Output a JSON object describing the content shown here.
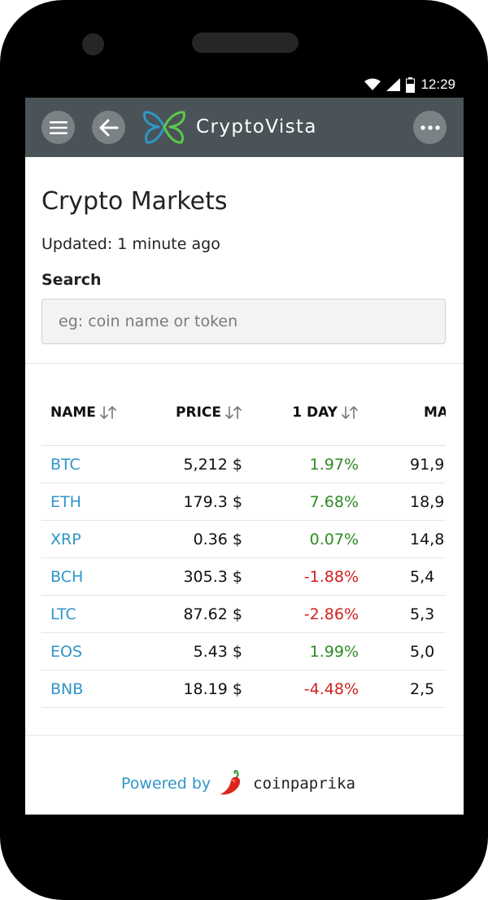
{
  "status_bar": {
    "time": "12:29"
  },
  "topbar": {
    "brand": "CryptoVista"
  },
  "page": {
    "title": "Crypto Markets",
    "updated": "Updated: 1 minute ago",
    "search_label": "Search",
    "search_placeholder": "eg: coin name or token",
    "search_value": ""
  },
  "table": {
    "headers": {
      "name": "NAME",
      "price": "PRICE",
      "day": "1 DAY",
      "market": "MA"
    },
    "rows": [
      {
        "symbol": "BTC",
        "price": "5,212 $",
        "change": "1.97%",
        "trend": "positive",
        "mcap": "91,9"
      },
      {
        "symbol": "ETH",
        "price": "179.3 $",
        "change": "7.68%",
        "trend": "positive",
        "mcap": "18,9"
      },
      {
        "symbol": "XRP",
        "price": "0.36 $",
        "change": "0.07%",
        "trend": "positive",
        "mcap": "14,8"
      },
      {
        "symbol": "BCH",
        "price": "305.3 $",
        "change": "-1.88%",
        "trend": "negative",
        "mcap": "5,4"
      },
      {
        "symbol": "LTC",
        "price": "87.62 $",
        "change": "-2.86%",
        "trend": "negative",
        "mcap": "5,3"
      },
      {
        "symbol": "EOS",
        "price": "5.43 $",
        "change": "1.99%",
        "trend": "positive",
        "mcap": "5,0"
      },
      {
        "symbol": "BNB",
        "price": "18.19 $",
        "change": "-4.48%",
        "trend": "negative",
        "mcap": "2,5"
      }
    ]
  },
  "footer": {
    "powered_by": "Powered by",
    "provider": "coinpaprika"
  },
  "colors": {
    "topbar": "#4a5357",
    "link": "#2f96c8",
    "positive": "#2e8b23",
    "negative": "#d11f1f"
  },
  "icons": [
    "wifi-icon",
    "signal-icon",
    "battery-icon",
    "menu-icon",
    "back-arrow-icon",
    "logo-icon",
    "more-icon",
    "sort-icon",
    "pepper-icon"
  ]
}
